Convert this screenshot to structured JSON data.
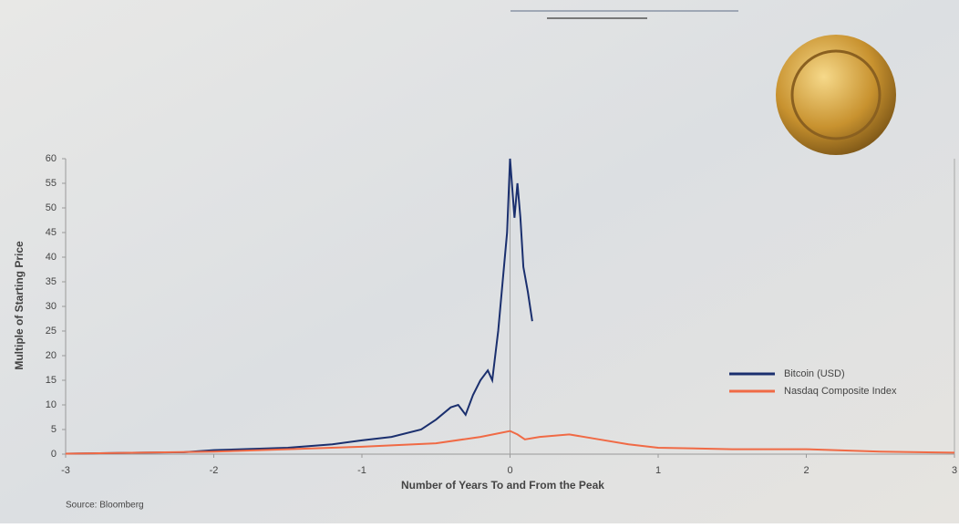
{
  "chart_data": {
    "type": "line",
    "x_label": "Number of Years To and From the Peak",
    "y_label": "Multiple of Starting Price",
    "source": "Source: Bloomberg",
    "xlim": [
      -3,
      3
    ],
    "xticks": [
      -3,
      -2,
      -1,
      0,
      1,
      2,
      3
    ],
    "ylim": [
      0,
      60
    ],
    "yticks": [
      0,
      5,
      10,
      15,
      20,
      25,
      30,
      35,
      40,
      45,
      50,
      55,
      60
    ],
    "legend": "right",
    "series": [
      {
        "name": "Bitcoin (USD)",
        "color": "#1a2f6e",
        "x": [
          -3,
          -2.5,
          -2.2,
          -2,
          -1.5,
          -1.2,
          -1,
          -0.8,
          -0.6,
          -0.5,
          -0.4,
          -0.35,
          -0.3,
          -0.25,
          -0.2,
          -0.15,
          -0.12,
          -0.08,
          -0.05,
          -0.02,
          0,
          0.03,
          0.05,
          0.07,
          0.09,
          0.12,
          0.15
        ],
        "values": [
          0.1,
          0.3,
          0.4,
          0.8,
          1.3,
          2,
          2.8,
          3.5,
          5,
          7,
          9.5,
          10,
          8,
          12,
          15,
          17,
          15,
          25,
          35,
          45,
          60,
          48,
          55,
          48,
          38,
          33,
          27
        ]
      },
      {
        "name": "Nasdaq Composite Index",
        "color": "#f06a45",
        "x": [
          -3,
          -2,
          -1.5,
          -1,
          -0.5,
          -0.2,
          0,
          0.05,
          0.1,
          0.2,
          0.4,
          0.6,
          0.8,
          1,
          1.5,
          2,
          2.5,
          3
        ],
        "values": [
          0.1,
          0.5,
          1,
          1.5,
          2.2,
          3.5,
          4.7,
          4,
          3,
          3.5,
          4,
          3,
          2,
          1.3,
          1,
          1,
          0.5,
          0.3
        ]
      }
    ]
  }
}
